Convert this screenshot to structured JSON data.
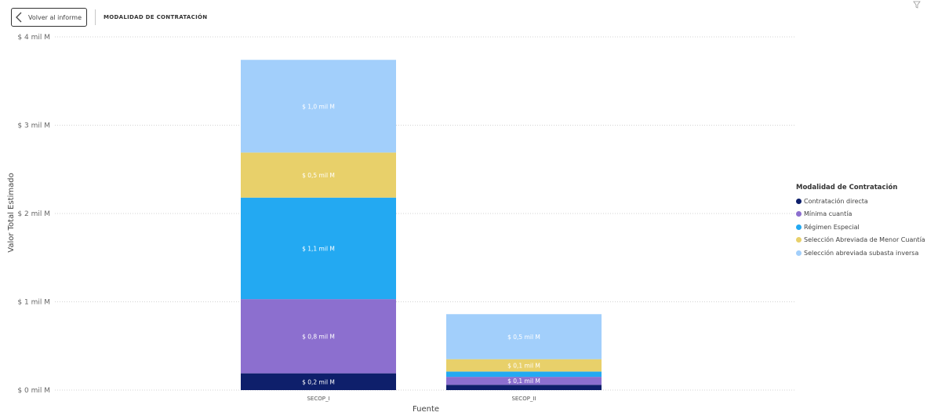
{
  "header": {
    "back_label": "Volver al informe",
    "title": "MODALIDAD DE CONTRATACIÓN"
  },
  "icons": {
    "back": "chevron-left-icon",
    "corner": "filter-icon"
  },
  "chart_data": {
    "type": "bar",
    "stacked": true,
    "categories": [
      "SECOP_I",
      "SECOP_II"
    ],
    "xlabel": "Fuente",
    "ylabel": "Valor Total Estimado",
    "ylim": [
      0,
      4
    ],
    "yticks": [
      0,
      1,
      2,
      3,
      4
    ],
    "ytick_labels": [
      "$ 0 mil M",
      "$ 1 mil M",
      "$ 2 mil M",
      "$ 3 mil M",
      "$ 4 mil M"
    ],
    "grid": true,
    "legend": {
      "title": "Modalidad de Contratación",
      "position": "right"
    },
    "series": [
      {
        "name": "Contratación directa",
        "color": "#0e1f6b",
        "values": [
          0.19,
          0.06
        ],
        "data_labels": [
          "$ 0,2 mil M",
          ""
        ]
      },
      {
        "name": "Mínima cuantía",
        "color": "#8c6fcf",
        "values": [
          0.84,
          0.09
        ],
        "data_labels": [
          "$ 0,8 mil M",
          "$ 0,1 mil M"
        ]
      },
      {
        "name": "Régimen Especial",
        "color": "#23a9f2",
        "values": [
          1.15,
          0.06
        ],
        "data_labels": [
          "$ 1,1 mil M",
          ""
        ]
      },
      {
        "name": "Selección Abreviada de Menor Cuantía",
        "color": "#e8d06a",
        "values": [
          0.51,
          0.14
        ],
        "data_labels": [
          "$ 0,5 mil M",
          "$ 0,1 mil M"
        ]
      },
      {
        "name": "Selección abreviada subasta inversa",
        "color": "#a2cffb",
        "values": [
          1.05,
          0.51
        ],
        "data_labels": [
          "$ 1,0 mil M",
          "$ 0,5 mil M"
        ]
      }
    ]
  }
}
